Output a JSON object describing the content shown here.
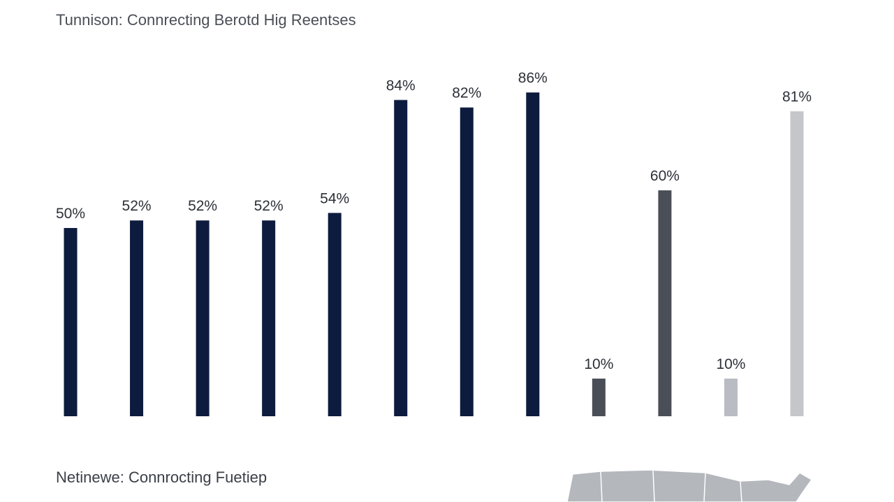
{
  "chart_data": {
    "type": "bar",
    "title": "Tunnison: Connrecting Berotd Hig Reentses",
    "subtitle": "Netinewe: Connrocting Fuetiep",
    "values": [
      50,
      52,
      52,
      52,
      54,
      84,
      82,
      86,
      10,
      60,
      10,
      81
    ],
    "value_labels": [
      "50%",
      "52%",
      "52%",
      "52%",
      "54%",
      "84%",
      "82%",
      "86%",
      "10%",
      "60%",
      "10%",
      "81%"
    ],
    "colors": [
      "#0d1b3e",
      "#0d1b3e",
      "#0d1b3e",
      "#0d1b3e",
      "#0d1b3e",
      "#0d1b3e",
      "#0d1b3e",
      "#0d1b3e",
      "#4a4f57",
      "#4a4f57",
      "#b9bcc2",
      "#c4c6ca"
    ]
  }
}
